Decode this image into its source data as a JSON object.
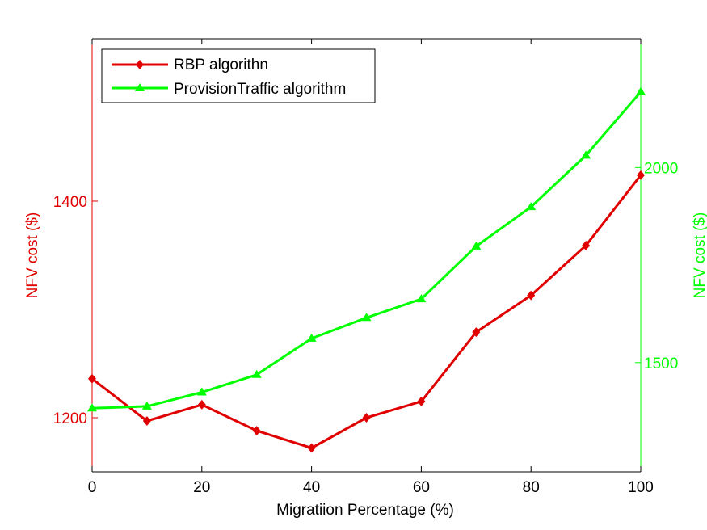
{
  "chart_data": {
    "type": "line",
    "xlabel": "Migratiion Percentage (%)",
    "ylabel_left": "NFV cost ($)",
    "ylabel_right": "NFV cost ($)",
    "x": [
      0,
      10,
      20,
      30,
      40,
      50,
      60,
      70,
      80,
      90,
      100
    ],
    "xlim": [
      0,
      100
    ],
    "xticks": [
      "0",
      "20",
      "40",
      "60",
      "80",
      "100"
    ],
    "ylim_left": [
      1150,
      1550
    ],
    "yticks_left": [
      "1200",
      "1400"
    ],
    "ylim_right": [
      1220,
      2330
    ],
    "yticks_right": [
      "1500",
      "2000"
    ],
    "grid": false,
    "legend_position": "top-left",
    "series": [
      {
        "name": "RBP algorithn",
        "axis": "left",
        "color": "#e00000",
        "marker": "diamond",
        "values": [
          1236,
          1197,
          1212,
          1188,
          1172,
          1200,
          1215,
          1279,
          1313,
          1359,
          1424
        ]
      },
      {
        "name": "ProvisionTraffic algorithm",
        "axis": "right",
        "color": "#00ff00",
        "marker": "triangle",
        "values": [
          1383,
          1388,
          1424,
          1469,
          1562,
          1615,
          1663,
          1798,
          1899,
          2031,
          2194
        ]
      }
    ]
  }
}
